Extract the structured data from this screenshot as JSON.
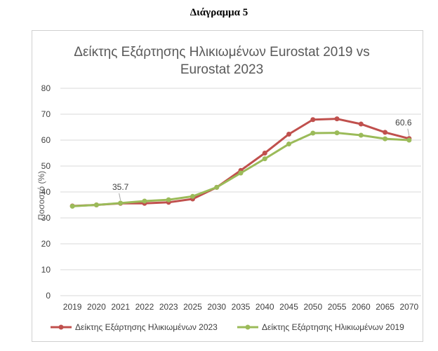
{
  "heading": "Διάγραμμα 5",
  "chart_data": {
    "type": "line",
    "title_lines": [
      "Δείκτης Εξάρτησης Ηλικιωμένων Eurostat 2019 vs",
      "Eurostat 2023"
    ],
    "xlabel": "",
    "ylabel": "Ποσοστό (%)",
    "ylim": [
      0,
      80
    ],
    "yticks": [
      0,
      10,
      20,
      30,
      40,
      50,
      60,
      70,
      80
    ],
    "categories": [
      "2019",
      "2020",
      "2021",
      "2022",
      "2023",
      "2025",
      "2030",
      "2035",
      "2040",
      "2045",
      "2050",
      "2055",
      "2060",
      "2065",
      "2070"
    ],
    "grid": true,
    "legend_position": "bottom",
    "series": [
      {
        "name": "Δείκτης Εξάρτησης Ηλικιωμένων 2023",
        "color": "#c0504d",
        "values": [
          34.6,
          35.0,
          35.6,
          35.6,
          36.0,
          37.3,
          41.8,
          48.3,
          55.0,
          62.3,
          67.9,
          68.2,
          66.2,
          63.0,
          60.6
        ]
      },
      {
        "name": "Δείκτης Εξάρτησης Ηλικιωμένων 2019",
        "color": "#9bbb59",
        "values": [
          34.5,
          35.0,
          35.7,
          36.5,
          37.0,
          38.3,
          41.8,
          47.3,
          52.8,
          58.5,
          62.7,
          62.8,
          61.9,
          60.5,
          60.0
        ]
      }
    ],
    "annotations": [
      {
        "series": 1,
        "index": 2,
        "text": "35.7"
      },
      {
        "series": 0,
        "index": 14,
        "text": "60.6"
      }
    ]
  }
}
